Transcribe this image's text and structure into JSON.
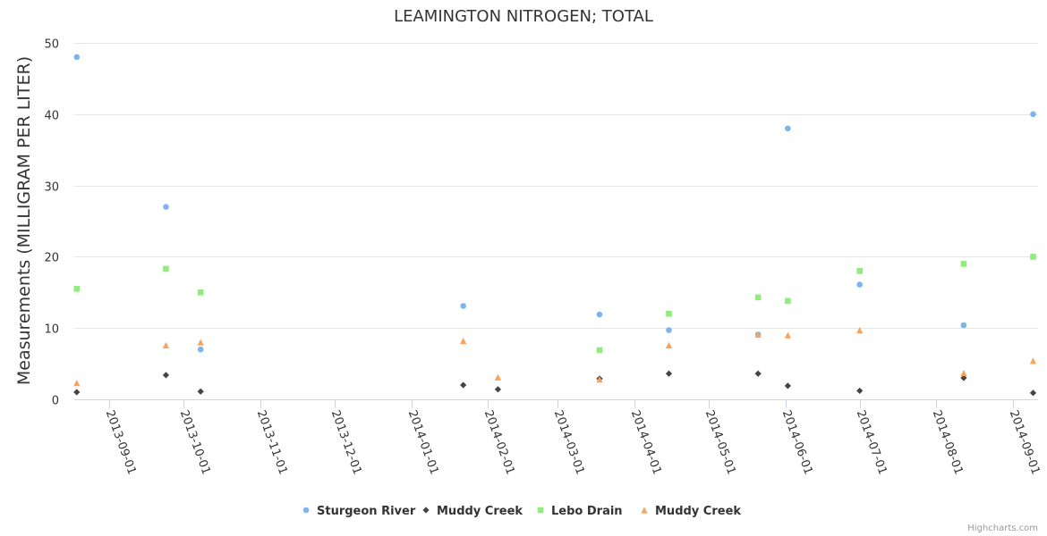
{
  "chart_data": {
    "type": "scatter",
    "title": "LEAMINGTON NITROGEN; TOTAL",
    "ylabel": "Measurements (MILLIGRAM PER LITER)",
    "xlabel": "",
    "ylim": [
      0,
      50
    ],
    "yticks": [
      0,
      10,
      20,
      30,
      40,
      50
    ],
    "xlim": [
      "2013-08-18",
      "2014-09-11"
    ],
    "xticks": [
      "2013-09-01",
      "2013-10-01",
      "2013-11-01",
      "2013-12-01",
      "2014-01-01",
      "2014-02-01",
      "2014-03-01",
      "2014-04-01",
      "2014-05-01",
      "2014-06-01",
      "2014-07-01",
      "2014-08-01",
      "2014-09-01"
    ],
    "grid": "horizontal",
    "legend_position": "bottom-center",
    "series": [
      {
        "name": "Sturgeon River",
        "color": "#7cb5ec",
        "marker": "circle",
        "points": [
          {
            "x": "2013-08-19",
            "y": 48.0
          },
          {
            "x": "2013-09-24",
            "y": 27.0
          },
          {
            "x": "2013-10-08",
            "y": 7.0
          },
          {
            "x": "2014-01-22",
            "y": 13.1
          },
          {
            "x": "2014-03-18",
            "y": 11.9
          },
          {
            "x": "2014-04-15",
            "y": 9.7
          },
          {
            "x": "2014-05-21",
            "y": 9.1
          },
          {
            "x": "2014-06-02",
            "y": 38.0
          },
          {
            "x": "2014-07-01",
            "y": 16.1
          },
          {
            "x": "2014-08-12",
            "y": 10.4
          },
          {
            "x": "2014-09-09",
            "y": 40.0
          }
        ]
      },
      {
        "name": "Muddy Creek",
        "color": "#434348",
        "marker": "diamond",
        "points": [
          {
            "x": "2013-08-19",
            "y": 1.0
          },
          {
            "x": "2013-09-24",
            "y": 3.4
          },
          {
            "x": "2013-10-08",
            "y": 1.1
          },
          {
            "x": "2014-01-22",
            "y": 2.0
          },
          {
            "x": "2014-02-05",
            "y": 1.4
          },
          {
            "x": "2014-03-18",
            "y": 2.9
          },
          {
            "x": "2014-04-15",
            "y": 3.6
          },
          {
            "x": "2014-05-21",
            "y": 3.6
          },
          {
            "x": "2014-06-02",
            "y": 1.9
          },
          {
            "x": "2014-07-01",
            "y": 1.2
          },
          {
            "x": "2014-08-12",
            "y": 3.0
          },
          {
            "x": "2014-09-09",
            "y": 0.9
          }
        ]
      },
      {
        "name": "Lebo Drain",
        "color": "#90ed7d",
        "marker": "square",
        "points": [
          {
            "x": "2013-08-19",
            "y": 15.5
          },
          {
            "x": "2013-09-24",
            "y": 18.3
          },
          {
            "x": "2013-10-08",
            "y": 15.0
          },
          {
            "x": "2014-03-18",
            "y": 6.9
          },
          {
            "x": "2014-04-15",
            "y": 12.0
          },
          {
            "x": "2014-05-21",
            "y": 14.3
          },
          {
            "x": "2014-06-02",
            "y": 13.8
          },
          {
            "x": "2014-07-01",
            "y": 18.0
          },
          {
            "x": "2014-08-12",
            "y": 19.0
          },
          {
            "x": "2014-09-09",
            "y": 20.0
          }
        ]
      },
      {
        "name": "Muddy Creek",
        "color": "#f7a35c",
        "marker": "triangle",
        "points": [
          {
            "x": "2013-08-19",
            "y": 2.3
          },
          {
            "x": "2013-09-24",
            "y": 7.6
          },
          {
            "x": "2013-10-08",
            "y": 8.0
          },
          {
            "x": "2014-01-22",
            "y": 8.2
          },
          {
            "x": "2014-02-05",
            "y": 3.1
          },
          {
            "x": "2014-03-18",
            "y": 2.8
          },
          {
            "x": "2014-04-15",
            "y": 7.6
          },
          {
            "x": "2014-05-21",
            "y": 9.1
          },
          {
            "x": "2014-06-02",
            "y": 9.0
          },
          {
            "x": "2014-07-01",
            "y": 9.7
          },
          {
            "x": "2014-08-12",
            "y": 3.7
          },
          {
            "x": "2014-09-09",
            "y": 5.4
          }
        ]
      }
    ]
  },
  "credits": "Highcharts.com"
}
